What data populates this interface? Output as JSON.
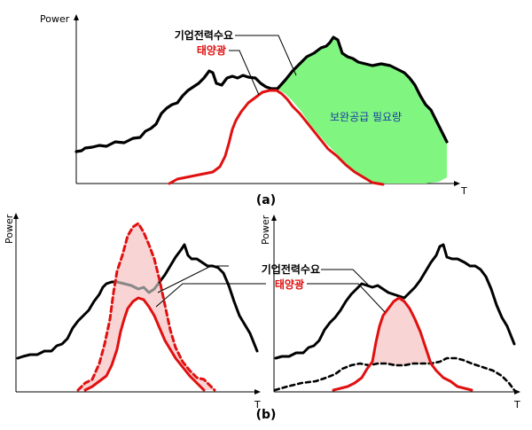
{
  "panel_a": {
    "y_axis_label": "Power",
    "x_axis_label": "T",
    "caption": "(a)",
    "demand_label": "기업전력수요",
    "solar_label": "태양광",
    "gap_label": "보완공급 필요량"
  },
  "panel_b_left": {
    "y_axis_label": "Power",
    "x_axis_label": "T"
  },
  "panel_b_right": {
    "y_axis_label": "Power",
    "x_axis_label": "T",
    "demand_label": "기업전력수요",
    "solar_label": "태양광"
  },
  "caption_b": "(b)",
  "colors": {
    "demand": "#000000",
    "solar": "#e01010",
    "gap_fill": "#80f580",
    "solar_fill": "#f9d4d4",
    "gap_text": "#1a3fa0",
    "solar_text": "#e01010"
  }
}
